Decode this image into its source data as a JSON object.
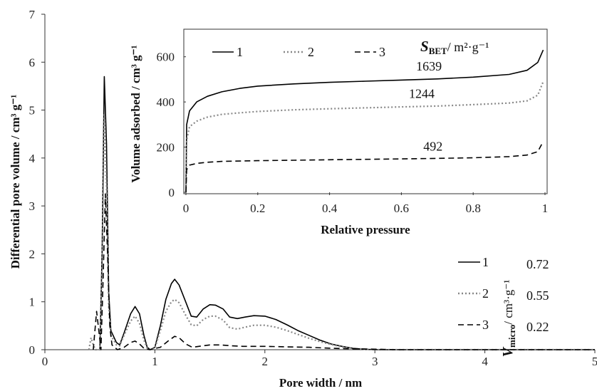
{
  "chart_data": [
    {
      "type": "line",
      "title": "",
      "xlabel": "Pore width / nm",
      "ylabel": "Differential pore volume / cm³ g⁻¹",
      "xlim": [
        0,
        5
      ],
      "ylim": [
        0,
        7
      ],
      "xticks": [
        "0",
        "1",
        "2",
        "3",
        "4",
        "5"
      ],
      "yticks": [
        "0",
        "1",
        "2",
        "3",
        "4",
        "5",
        "6",
        "7"
      ],
      "grid": false,
      "legend_position": "bottom-right",
      "legend_header": {
        "symbol": "V",
        "subscript": "micro",
        "unit": "/ cm³·g⁻¹"
      },
      "series": [
        {
          "name": "1",
          "style": "solid",
          "color": "#000000",
          "value_label": "0.72",
          "points": [
            [
              0.5,
              0
            ],
            [
              0.52,
              2.0
            ],
            [
              0.54,
              5.7
            ],
            [
              0.56,
              4.3
            ],
            [
              0.58,
              1.2
            ],
            [
              0.6,
              0.4
            ],
            [
              0.65,
              0.15
            ],
            [
              0.68,
              0.1
            ],
            [
              0.72,
              0.35
            ],
            [
              0.78,
              0.75
            ],
            [
              0.82,
              0.9
            ],
            [
              0.86,
              0.75
            ],
            [
              0.9,
              0.3
            ],
            [
              0.93,
              0.05
            ],
            [
              0.96,
              0.0
            ],
            [
              1.0,
              0.05
            ],
            [
              1.05,
              0.5
            ],
            [
              1.1,
              1.05
            ],
            [
              1.15,
              1.38
            ],
            [
              1.18,
              1.47
            ],
            [
              1.22,
              1.35
            ],
            [
              1.28,
              1.0
            ],
            [
              1.33,
              0.7
            ],
            [
              1.38,
              0.68
            ],
            [
              1.44,
              0.85
            ],
            [
              1.5,
              0.94
            ],
            [
              1.55,
              0.93
            ],
            [
              1.62,
              0.85
            ],
            [
              1.68,
              0.68
            ],
            [
              1.75,
              0.65
            ],
            [
              1.82,
              0.68
            ],
            [
              1.9,
              0.71
            ],
            [
              2.0,
              0.7
            ],
            [
              2.1,
              0.63
            ],
            [
              2.2,
              0.52
            ],
            [
              2.3,
              0.4
            ],
            [
              2.4,
              0.3
            ],
            [
              2.5,
              0.2
            ],
            [
              2.6,
              0.12
            ],
            [
              2.7,
              0.07
            ],
            [
              2.8,
              0.03
            ],
            [
              2.9,
              0.01
            ],
            [
              3.0,
              0.0
            ],
            [
              3.5,
              0.0
            ],
            [
              4.0,
              0.0
            ],
            [
              4.5,
              0.0
            ],
            [
              5.0,
              0.0
            ]
          ]
        },
        {
          "name": "2",
          "style": "dotted",
          "color": "#888888",
          "value_label": "0.55",
          "points": [
            [
              0.4,
              0.0
            ],
            [
              0.42,
              0.25
            ],
            [
              0.44,
              0.1
            ],
            [
              0.46,
              0.0
            ],
            [
              0.5,
              0.0
            ],
            [
              0.52,
              1.8
            ],
            [
              0.54,
              4.9
            ],
            [
              0.56,
              3.4
            ],
            [
              0.58,
              0.9
            ],
            [
              0.6,
              0.3
            ],
            [
              0.65,
              0.1
            ],
            [
              0.68,
              0.08
            ],
            [
              0.72,
              0.3
            ],
            [
              0.78,
              0.6
            ],
            [
              0.82,
              0.7
            ],
            [
              0.86,
              0.55
            ],
            [
              0.9,
              0.2
            ],
            [
              0.93,
              0.03
            ],
            [
              0.96,
              0.0
            ],
            [
              1.0,
              0.03
            ],
            [
              1.05,
              0.4
            ],
            [
              1.1,
              0.8
            ],
            [
              1.15,
              1.0
            ],
            [
              1.18,
              1.05
            ],
            [
              1.22,
              0.98
            ],
            [
              1.28,
              0.72
            ],
            [
              1.33,
              0.52
            ],
            [
              1.38,
              0.5
            ],
            [
              1.44,
              0.63
            ],
            [
              1.5,
              0.7
            ],
            [
              1.55,
              0.7
            ],
            [
              1.62,
              0.62
            ],
            [
              1.68,
              0.46
            ],
            [
              1.75,
              0.43
            ],
            [
              1.82,
              0.47
            ],
            [
              1.9,
              0.51
            ],
            [
              2.0,
              0.51
            ],
            [
              2.1,
              0.47
            ],
            [
              2.2,
              0.4
            ],
            [
              2.3,
              0.32
            ],
            [
              2.4,
              0.24
            ],
            [
              2.5,
              0.17
            ],
            [
              2.6,
              0.11
            ],
            [
              2.7,
              0.06
            ],
            [
              2.8,
              0.03
            ],
            [
              2.9,
              0.01
            ],
            [
              3.0,
              0.0
            ],
            [
              3.5,
              0.0
            ],
            [
              4.0,
              0.0
            ],
            [
              4.5,
              0.0
            ],
            [
              5.0,
              0.0
            ]
          ]
        },
        {
          "name": "3",
          "style": "dashed",
          "color": "#000000",
          "value_label": "0.22",
          "points": [
            [
              0.44,
              0.0
            ],
            [
              0.47,
              0.8
            ],
            [
              0.49,
              0.4
            ],
            [
              0.51,
              0.0
            ],
            [
              0.53,
              1.5
            ],
            [
              0.55,
              3.25
            ],
            [
              0.57,
              2.0
            ],
            [
              0.59,
              0.5
            ],
            [
              0.61,
              0.1
            ],
            [
              0.66,
              0.0
            ],
            [
              0.72,
              0.05
            ],
            [
              0.78,
              0.15
            ],
            [
              0.82,
              0.18
            ],
            [
              0.86,
              0.12
            ],
            [
              0.9,
              0.03
            ],
            [
              0.95,
              0.0
            ],
            [
              1.05,
              0.05
            ],
            [
              1.12,
              0.18
            ],
            [
              1.18,
              0.28
            ],
            [
              1.22,
              0.25
            ],
            [
              1.28,
              0.12
            ],
            [
              1.34,
              0.05
            ],
            [
              1.4,
              0.07
            ],
            [
              1.5,
              0.1
            ],
            [
              1.6,
              0.1
            ],
            [
              1.7,
              0.08
            ],
            [
              1.8,
              0.07
            ],
            [
              1.9,
              0.07
            ],
            [
              2.0,
              0.07
            ],
            [
              2.2,
              0.06
            ],
            [
              2.4,
              0.05
            ],
            [
              2.6,
              0.03
            ],
            [
              2.8,
              0.02
            ],
            [
              3.0,
              0.01
            ],
            [
              3.2,
              0.0
            ],
            [
              3.5,
              0.0
            ],
            [
              4.0,
              0.0
            ],
            [
              4.5,
              0.0
            ],
            [
              5.0,
              0.0
            ]
          ]
        }
      ]
    },
    {
      "type": "line",
      "title": "",
      "xlabel": "Relative pressure",
      "ylabel": "Volume adsorbed / cm³ g⁻¹",
      "xlim": [
        0,
        1
      ],
      "ylim": [
        0,
        700
      ],
      "xticks": [
        "0",
        "0.2",
        "0.4",
        "0.6",
        "0.8",
        "1"
      ],
      "yticks": [
        "0",
        "200",
        "400",
        "600"
      ],
      "grid": false,
      "legend_position": "top-left",
      "sbet_header": {
        "symbol": "S",
        "subscript": "BET",
        "unit": "/ m²·g⁻¹"
      },
      "series": [
        {
          "name": "1",
          "style": "solid",
          "color": "#000000",
          "value_label": "1639",
          "points": [
            [
              0,
              0
            ],
            [
              0.002,
              300
            ],
            [
              0.01,
              360
            ],
            [
              0.03,
              400
            ],
            [
              0.06,
              425
            ],
            [
              0.1,
              445
            ],
            [
              0.15,
              460
            ],
            [
              0.2,
              470
            ],
            [
              0.3,
              480
            ],
            [
              0.4,
              487
            ],
            [
              0.5,
              492
            ],
            [
              0.6,
              497
            ],
            [
              0.7,
              502
            ],
            [
              0.8,
              510
            ],
            [
              0.9,
              522
            ],
            [
              0.95,
              540
            ],
            [
              0.98,
              575
            ],
            [
              0.995,
              630
            ]
          ]
        },
        {
          "name": "2",
          "style": "dotted",
          "color": "#888888",
          "value_label": "1244",
          "points": [
            [
              0,
              0
            ],
            [
              0.002,
              230
            ],
            [
              0.01,
              290
            ],
            [
              0.03,
              315
            ],
            [
              0.06,
              333
            ],
            [
              0.1,
              345
            ],
            [
              0.15,
              352
            ],
            [
              0.2,
              358
            ],
            [
              0.3,
              365
            ],
            [
              0.4,
              370
            ],
            [
              0.5,
              374
            ],
            [
              0.6,
              378
            ],
            [
              0.7,
              382
            ],
            [
              0.8,
              388
            ],
            [
              0.9,
              395
            ],
            [
              0.95,
              405
            ],
            [
              0.98,
              430
            ],
            [
              0.995,
              490
            ]
          ]
        },
        {
          "name": "3",
          "style": "dashed",
          "color": "#000000",
          "value_label": "492",
          "points": [
            [
              0,
              0
            ],
            [
              0.002,
              100
            ],
            [
              0.01,
              120
            ],
            [
              0.03,
              128
            ],
            [
              0.06,
              133
            ],
            [
              0.1,
              137
            ],
            [
              0.2,
              140
            ],
            [
              0.3,
              142
            ],
            [
              0.4,
              144
            ],
            [
              0.5,
              146
            ],
            [
              0.6,
              148
            ],
            [
              0.7,
              150
            ],
            [
              0.8,
              153
            ],
            [
              0.9,
              158
            ],
            [
              0.95,
              165
            ],
            [
              0.98,
              180
            ],
            [
              0.995,
              225
            ]
          ]
        }
      ]
    }
  ]
}
